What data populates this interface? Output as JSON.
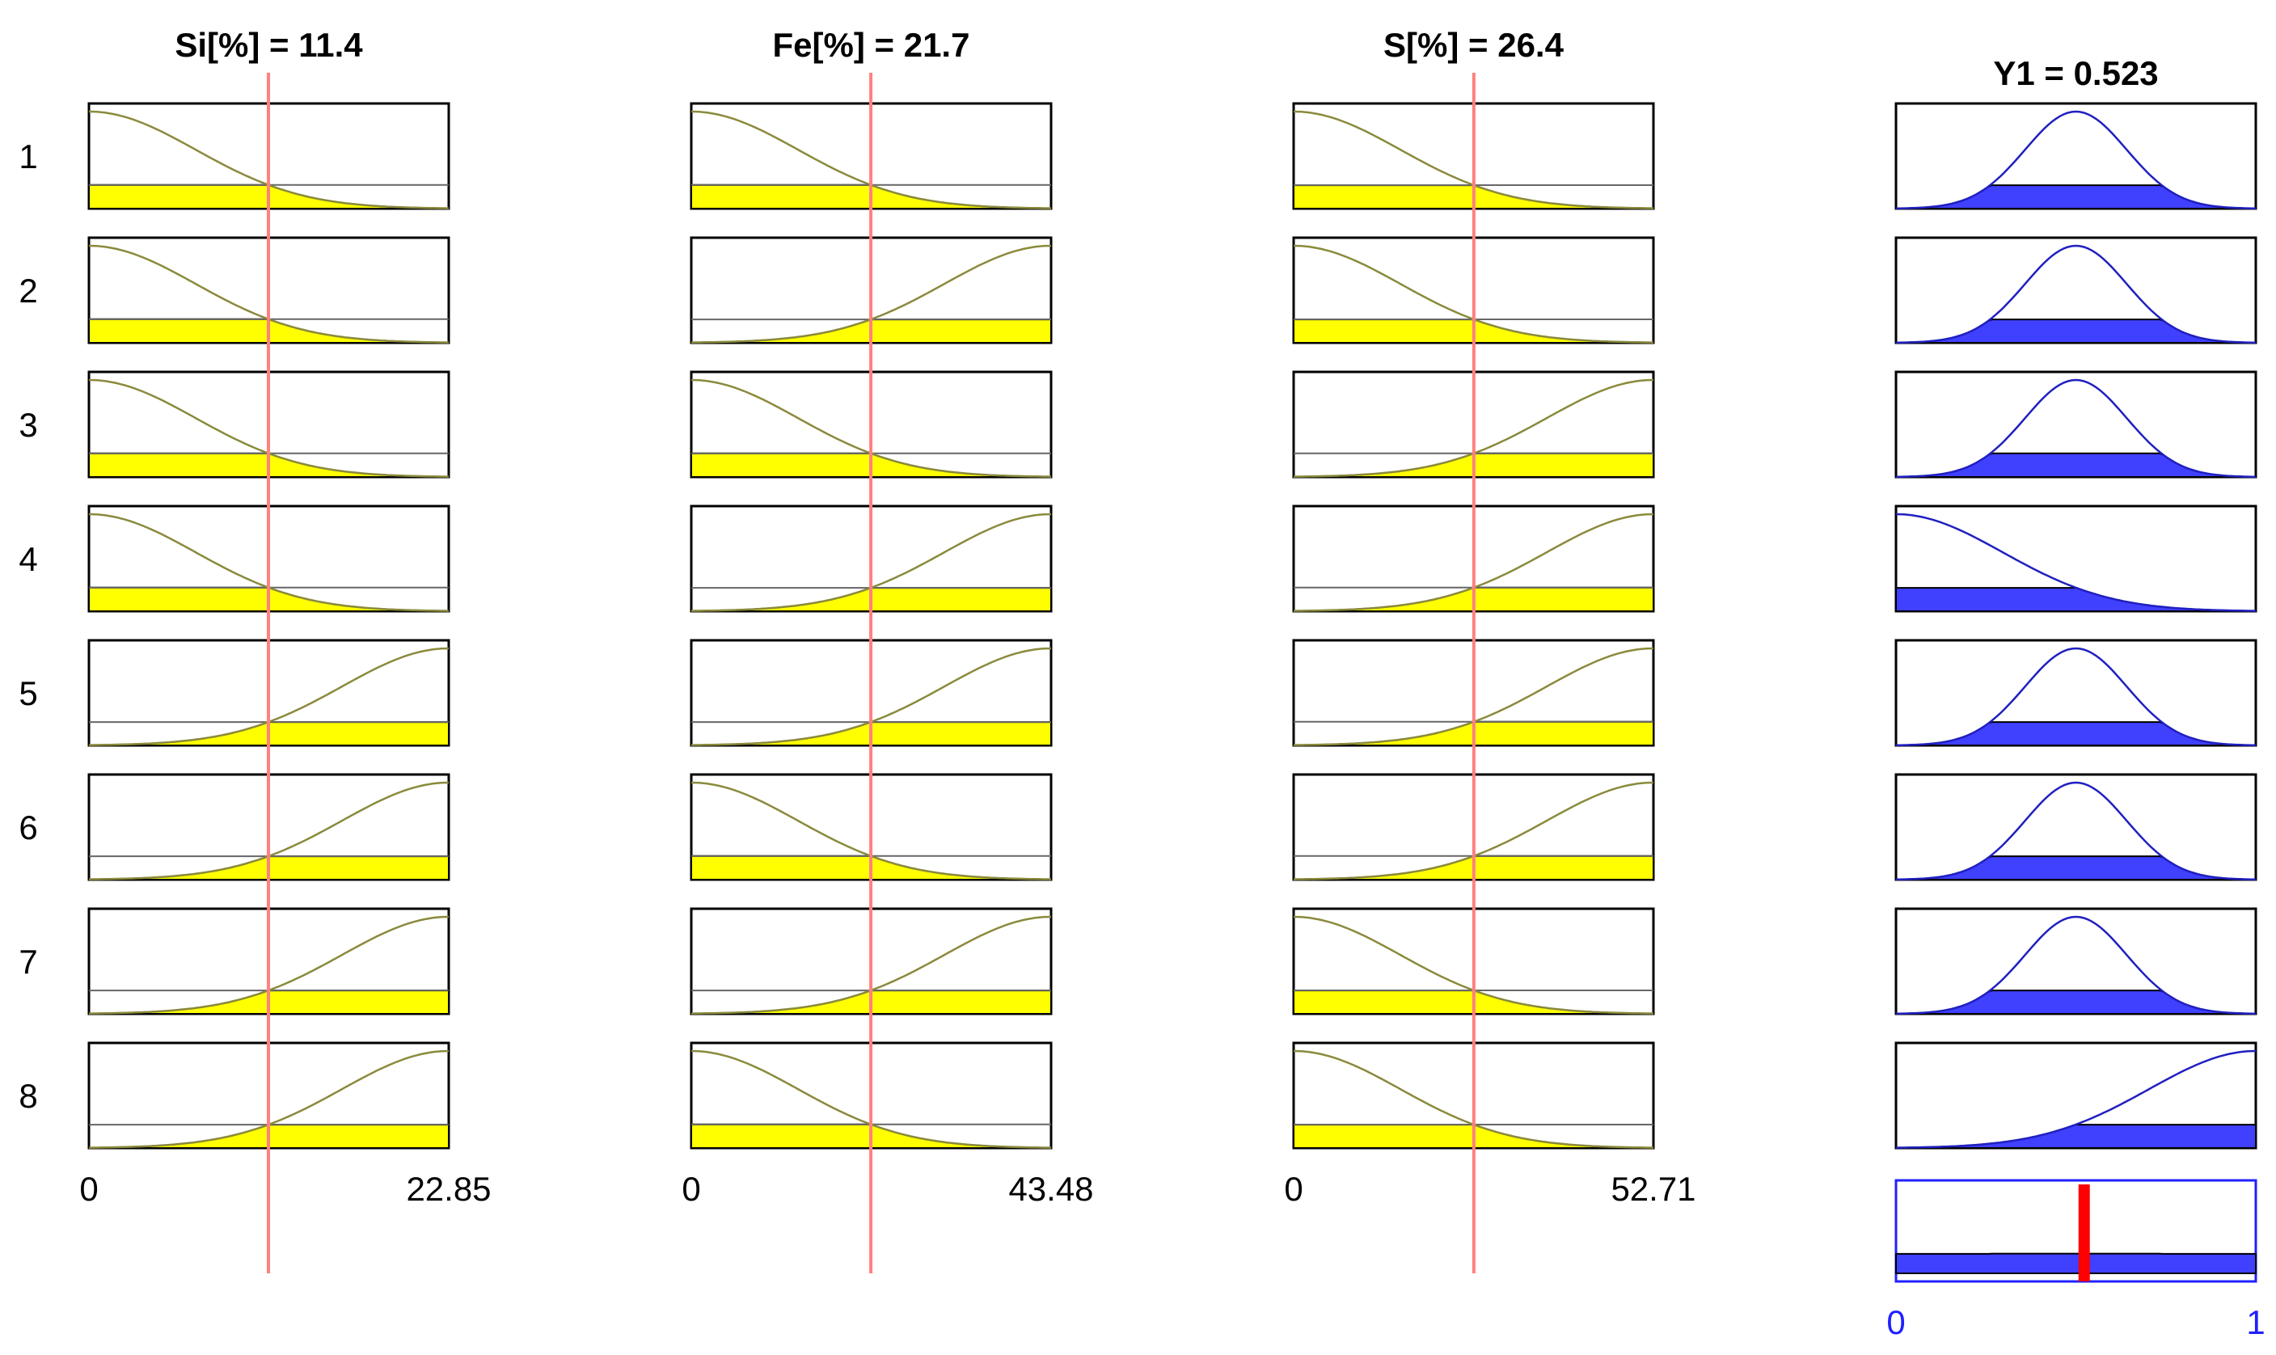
{
  "inputs": [
    {
      "header": "Si[%] = 11.4",
      "min": 0,
      "max": 22.85,
      "min_label": "0",
      "max_label": "22.85",
      "value": 11.4
    },
    {
      "header": "Fe[%] = 21.7",
      "min": 0,
      "max": 43.48,
      "min_label": "0",
      "max_label": "43.48",
      "value": 21.7
    },
    {
      "header": "S[%] = 26.4",
      "min": 0,
      "max": 52.71,
      "min_label": "0",
      "max_label": "52.71",
      "value": 26.4
    }
  ],
  "output": {
    "header": "Y1 = 0.523",
    "min": 0,
    "max": 1,
    "min_label": "0",
    "max_label": "1",
    "value": 0.523
  },
  "rules": [
    {
      "label": "1",
      "in": [
        "low",
        "low",
        "low"
      ],
      "out": "mid"
    },
    {
      "label": "2",
      "in": [
        "low",
        "high",
        "low"
      ],
      "out": "mid"
    },
    {
      "label": "3",
      "in": [
        "low",
        "low",
        "high"
      ],
      "out": "mid"
    },
    {
      "label": "4",
      "in": [
        "low",
        "high",
        "high"
      ],
      "out": "low"
    },
    {
      "label": "5",
      "in": [
        "high",
        "high",
        "high"
      ],
      "out": "mid"
    },
    {
      "label": "6",
      "in": [
        "high",
        "low",
        "high"
      ],
      "out": "mid"
    },
    {
      "label": "7",
      "in": [
        "high",
        "high",
        "low"
      ],
      "out": "mid"
    },
    {
      "label": "8",
      "in": [
        "high",
        "low",
        "low"
      ],
      "out": "high"
    }
  ],
  "colors": {
    "input_fill": "#ffff00",
    "output_fill": "#4040ff",
    "mf_curve_input": "#8a8a3c",
    "mf_curve_output": "#2020c0",
    "cursor_line": "#ff8080",
    "result_bar": "#ff0000",
    "axis_blue_text": "#2020ff"
  }
}
